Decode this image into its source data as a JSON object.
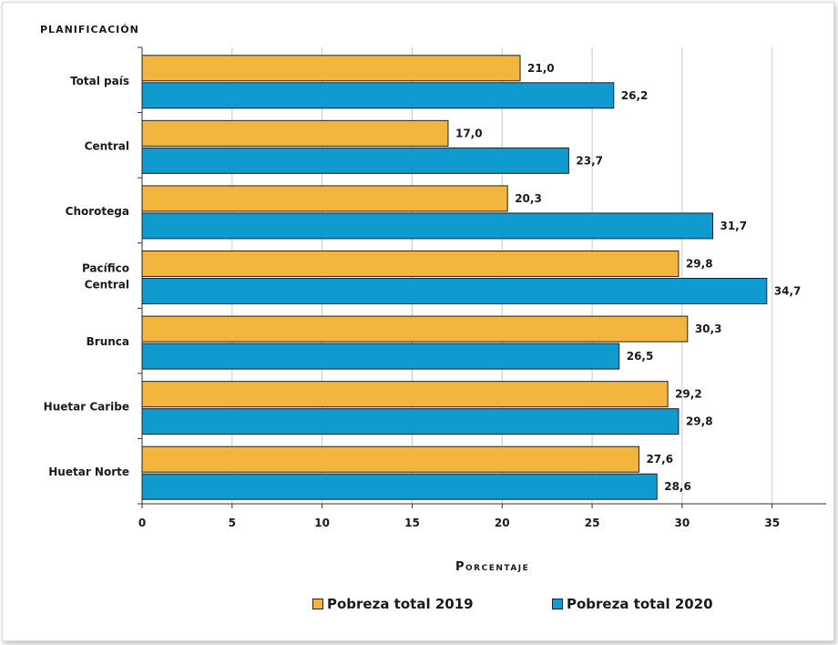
{
  "chart_data": {
    "type": "bar",
    "orientation": "horizontal",
    "ylabel": "PLANIFICACIÓN",
    "xlabel": "Porcentaje",
    "categories": [
      "Total país",
      "Central",
      "Chorotega",
      "Pacífico Central",
      "Brunca",
      "Huetar Caribe",
      "Huetar  Norte"
    ],
    "category_lines": [
      [
        "Total país"
      ],
      [
        "Central"
      ],
      [
        "Chorotega"
      ],
      [
        "Pacífico",
        "Central"
      ],
      [
        "Brunca"
      ],
      [
        "Huetar Caribe"
      ],
      [
        "Huetar  Norte"
      ]
    ],
    "series": [
      {
        "name": "Pobreza total 2019",
        "color": "#f4b53f",
        "values": [
          21.0,
          17.0,
          20.3,
          29.8,
          30.3,
          29.2,
          27.6
        ],
        "labels": [
          "21,0",
          "17,0",
          "20,3",
          "29,8",
          "30,3",
          "29,2",
          "27,6"
        ]
      },
      {
        "name": "Pobreza total 2020",
        "color": "#0f9ad0",
        "values": [
          26.2,
          23.7,
          31.7,
          34.7,
          26.5,
          29.8,
          28.6
        ],
        "labels": [
          "26,2",
          "23,7",
          "31,7",
          "34,7",
          "26,5",
          "29,8",
          "28,6"
        ]
      }
    ],
    "xlim": [
      0,
      38
    ],
    "xticks": [
      0,
      5,
      10,
      15,
      20,
      25,
      30,
      35
    ],
    "grid": true,
    "legend_position": "bottom"
  }
}
